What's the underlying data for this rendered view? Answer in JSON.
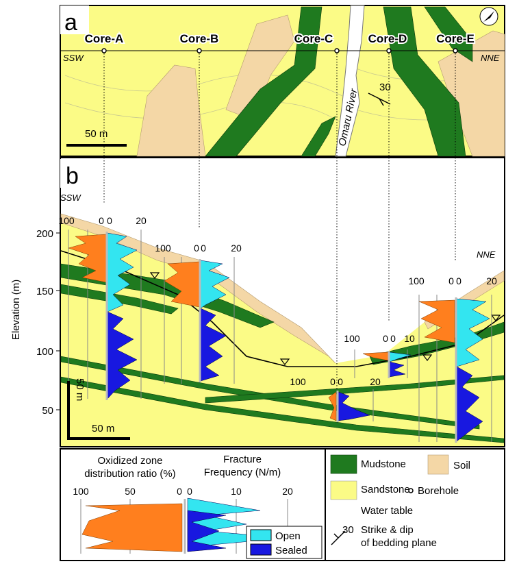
{
  "panel_a": {
    "label": "a",
    "cores": [
      "Core-A",
      "Core-B",
      "Core-C",
      "Core-D",
      "Core-E"
    ],
    "direction_left": "SSW",
    "direction_right": "NNE",
    "river": "Omaru River",
    "dip": "30",
    "scale": "50 m"
  },
  "panel_b": {
    "label": "b",
    "direction_left": "SSW",
    "direction_right": "NNE",
    "y_axis_label": "Elevation (m)",
    "y_ticks": [
      "200",
      "150",
      "100",
      "50"
    ],
    "vertical_scale": "50 m",
    "horizontal_scale": "50 m",
    "core_scales": [
      [
        "100",
        "0",
        "0",
        "20"
      ],
      [
        "100",
        "0",
        "0",
        "20"
      ],
      [
        "100",
        "0",
        "0",
        "20"
      ],
      [
        "100",
        "0",
        "0",
        "10"
      ],
      [
        "100",
        "0",
        "0",
        "20"
      ]
    ]
  },
  "legend": {
    "oxidized_title": [
      "Oxidized zone",
      "distribution ratio (%)"
    ],
    "oxidized_ticks": [
      "100",
      "50",
      "0"
    ],
    "fracture_title": [
      "Fracture",
      "Frequency (N/m)"
    ],
    "fracture_ticks": [
      "0",
      "10",
      "20"
    ],
    "open": "Open",
    "sealed": "Sealed",
    "mudstone": "Mudstone",
    "soil": "Soil",
    "sandstone": "Sandstone",
    "borehole": "Borehole",
    "water_table": "Water table",
    "dip": "30",
    "strike_dip": [
      "Strike & dip",
      "of bedding plane"
    ]
  }
}
